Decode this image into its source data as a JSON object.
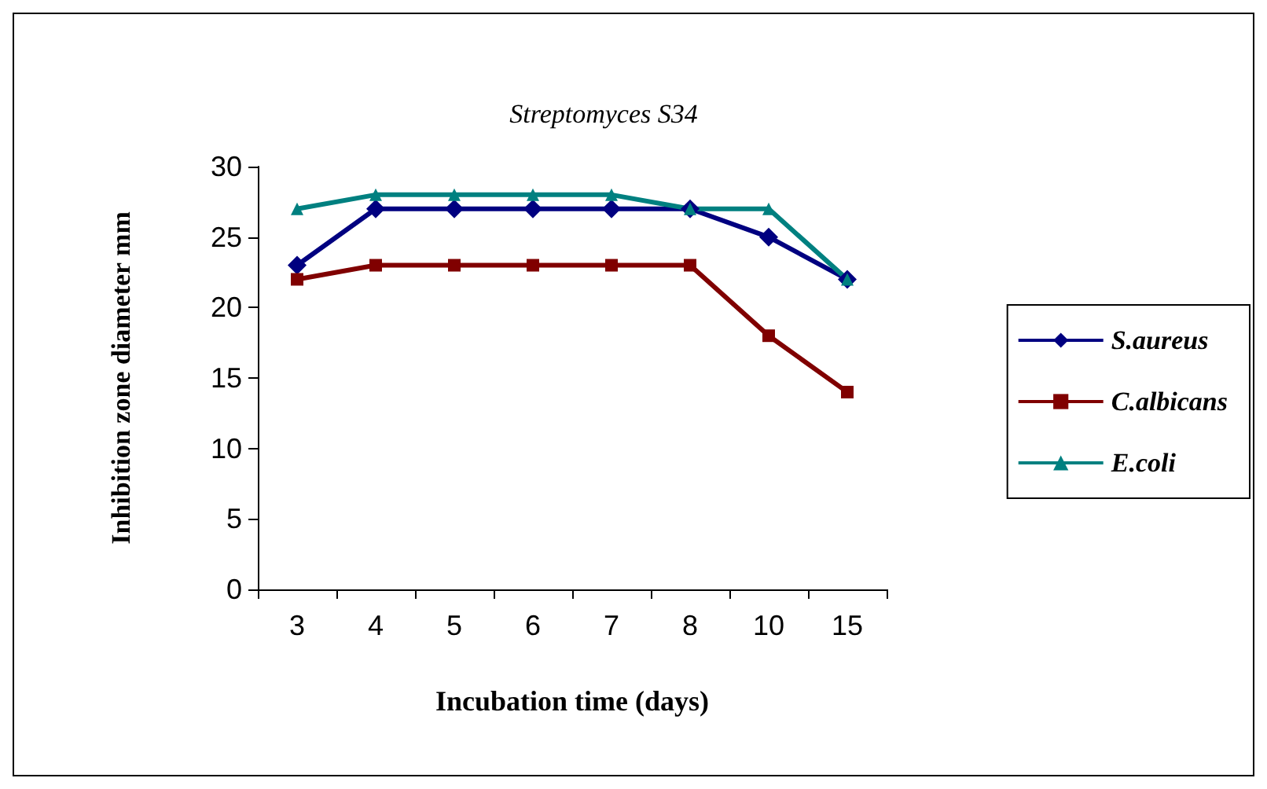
{
  "chart_data": {
    "type": "line",
    "title": "Streptomyces S34",
    "xlabel": "Incubation time (days)",
    "ylabel": "Inhibition zone diameter mm",
    "categories": [
      "3",
      "4",
      "5",
      "6",
      "7",
      "8",
      "10",
      "15"
    ],
    "series": [
      {
        "name": "S.aureus",
        "color": "#000080",
        "marker": "diamond",
        "values": [
          23,
          27,
          27,
          27,
          27,
          27,
          25,
          22
        ]
      },
      {
        "name": "C.albicans",
        "color": "#800000",
        "marker": "square",
        "values": [
          22,
          23,
          23,
          23,
          23,
          23,
          18,
          14
        ]
      },
      {
        "name": "E.coli",
        "color": "#008080",
        "marker": "triangle",
        "values": [
          27,
          28,
          28,
          28,
          28,
          27,
          27,
          22
        ]
      }
    ],
    "ylim": [
      0,
      30
    ],
    "yticks": [
      0,
      5,
      10,
      15,
      20,
      25,
      30
    ],
    "grid": false,
    "legend": "right",
    "line_style": "solid"
  }
}
